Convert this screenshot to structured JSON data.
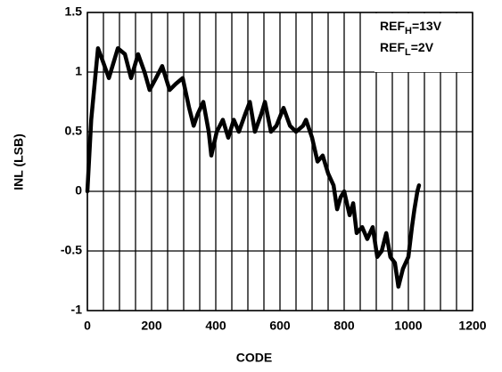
{
  "chart_data": {
    "type": "line",
    "xlabel": "CODE",
    "ylabel": "INL (LSB)",
    "annotations": [
      {
        "text": "REF",
        "sub": "H",
        "rest": "=13V"
      },
      {
        "text": "REF",
        "sub": "L",
        "rest": "=2V"
      }
    ],
    "x": [
      0,
      12,
      33,
      47,
      67,
      95,
      117,
      136,
      158,
      178,
      194,
      214,
      233,
      256,
      275,
      297,
      317,
      331,
      344,
      361,
      378,
      386,
      403,
      422,
      439,
      456,
      472,
      492,
      506,
      522,
      542,
      553,
      572,
      589,
      611,
      631,
      650,
      672,
      681,
      700,
      717,
      733,
      750,
      767,
      778,
      789,
      800,
      817,
      828,
      839,
      856,
      872,
      889,
      903,
      917,
      931,
      944,
      958,
      969,
      983,
      1000,
      1011,
      1019,
      1028,
      1033
    ],
    "series": [
      {
        "name": "INL",
        "color": "#000000",
        "values": [
          0,
          0.6,
          1.2,
          1.1,
          0.95,
          1.2,
          1.15,
          0.95,
          1.15,
          1.0,
          0.85,
          0.95,
          1.05,
          0.85,
          0.9,
          0.95,
          0.7,
          0.55,
          0.65,
          0.75,
          0.5,
          0.3,
          0.5,
          0.6,
          0.45,
          0.6,
          0.5,
          0.65,
          0.75,
          0.5,
          0.65,
          0.75,
          0.5,
          0.55,
          0.7,
          0.55,
          0.5,
          0.55,
          0.6,
          0.45,
          0.25,
          0.3,
          0.15,
          0.05,
          -0.15,
          -0.05,
          0.0,
          -0.2,
          -0.1,
          -0.35,
          -0.3,
          -0.4,
          -0.3,
          -0.55,
          -0.5,
          -0.35,
          -0.55,
          -0.6,
          -0.8,
          -0.65,
          -0.55,
          -0.3,
          -0.15,
          0.0,
          0.05
        ]
      }
    ],
    "xlim": [
      0,
      1200
    ],
    "xticks": [
      0,
      200,
      400,
      600,
      800,
      1000,
      1200
    ],
    "xgrid": [
      0,
      50,
      100,
      150,
      200,
      250,
      300,
      350,
      400,
      450,
      500,
      550,
      600,
      650,
      700,
      750,
      800,
      850,
      900,
      950,
      1000,
      1050,
      1100,
      1150,
      1200
    ],
    "ylim": [
      -1,
      1.5
    ],
    "yticks": [
      -1,
      -0.5,
      0,
      0.5,
      1,
      1.5
    ],
    "grid": true
  }
}
